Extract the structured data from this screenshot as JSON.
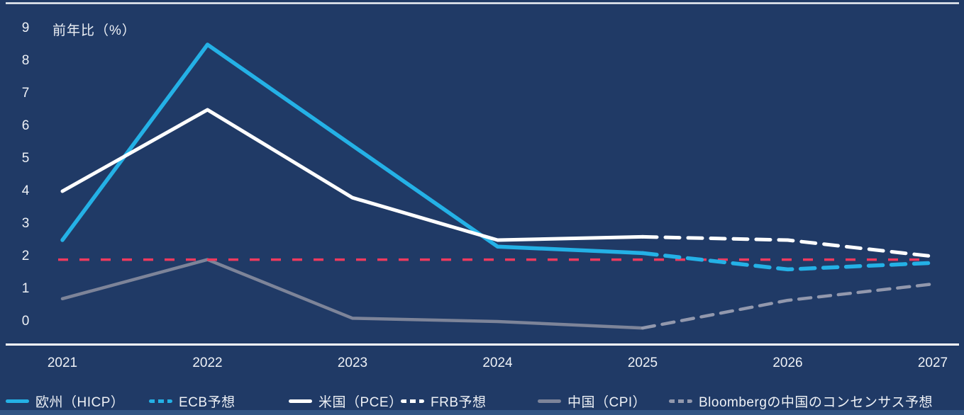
{
  "chart_data": {
    "type": "line",
    "ylabel": "前年比（%）",
    "background_color": "#203a66",
    "text_color": "#eef1f6",
    "x_years": [
      2021,
      2022,
      2023,
      2024,
      2025,
      2026,
      2027
    ],
    "y_ticks": [
      0,
      1,
      2,
      3,
      4,
      5,
      6,
      7,
      8,
      9
    ],
    "ylim": [
      0,
      9
    ],
    "grid": "off",
    "legend_position": "bottom",
    "series": [
      {
        "key": "eu-hicp",
        "name": "欧州（HICP）",
        "color": "#24b1e6",
        "style": "solid",
        "x": [
          2021,
          2022,
          2023,
          2024,
          2025
        ],
        "values": [
          2.5,
          8.5,
          5.4,
          2.3,
          2.1
        ]
      },
      {
        "key": "ecb-forecast",
        "name": "ECB予想",
        "color": "#24b1e6",
        "style": "dashed",
        "x": [
          2025,
          2026,
          2027
        ],
        "values": [
          2.1,
          1.6,
          1.8
        ]
      },
      {
        "key": "us-pce",
        "name": "米国（PCE）",
        "color": "#ffffff",
        "style": "solid",
        "x": [
          2021,
          2022,
          2023,
          2024,
          2025
        ],
        "values": [
          4.0,
          6.5,
          3.8,
          2.5,
          2.6
        ]
      },
      {
        "key": "frb-forecast",
        "name": "FRB予想",
        "color": "#ffffff",
        "style": "dashed",
        "x": [
          2025,
          2026,
          2027
        ],
        "values": [
          2.6,
          2.5,
          2.0
        ]
      },
      {
        "key": "china-cpi",
        "name": "中国（CPI）",
        "color": "#7d8499",
        "style": "solid",
        "x": [
          2021,
          2022,
          2023,
          2024,
          2025
        ],
        "values": [
          0.7,
          1.9,
          0.1,
          0.0,
          -0.2
        ]
      },
      {
        "key": "bloomberg-china-consensus",
        "name": "Bloombergの中国のコンセンサス予想",
        "color": "#9298ad",
        "style": "dashed",
        "x": [
          2025,
          2026,
          2027
        ],
        "values": [
          -0.2,
          0.65,
          1.15
        ]
      }
    ],
    "reference_line": {
      "value": 1.9,
      "color": "#ef3a5e",
      "style": "dashed"
    }
  }
}
